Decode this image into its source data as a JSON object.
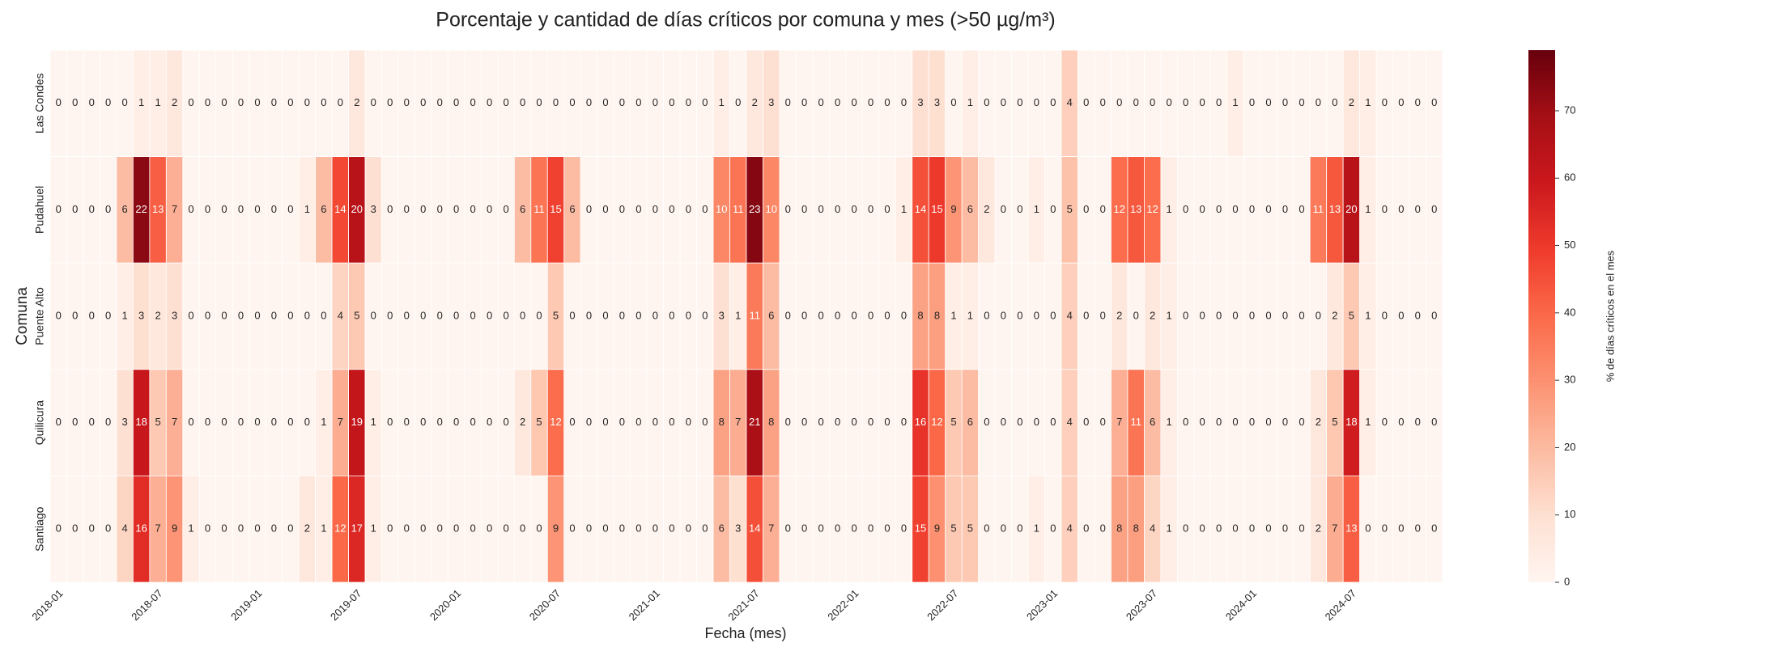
{
  "chart_data": {
    "type": "heatmap",
    "title": "Porcentaje y cantidad de días críticos por comuna y mes (>50 µg/m³)",
    "xlabel": "Fecha (mes)",
    "ylabel": "Comuna",
    "categories": [
      "2018-01",
      null,
      null,
      null,
      null,
      null,
      "2018-07",
      null,
      null,
      null,
      null,
      null,
      "2019-01",
      null,
      null,
      null,
      null,
      null,
      "2019-07",
      null,
      null,
      null,
      null,
      null,
      "2020-01",
      null,
      null,
      null,
      null,
      null,
      "2020-07",
      null,
      null,
      null,
      null,
      null,
      "2021-01",
      null,
      null,
      null,
      null,
      null,
      "2021-07",
      null,
      null,
      null,
      null,
      null,
      "2022-01",
      null,
      null,
      null,
      null,
      null,
      "2022-07",
      null,
      null,
      null,
      null,
      null,
      "2023-01",
      null,
      null,
      null,
      null,
      null,
      "2023-07",
      null,
      null,
      null,
      null,
      null,
      "2024-01",
      null,
      null,
      null,
      null,
      null,
      "2024-07",
      null,
      null,
      null,
      null,
      null
    ],
    "rows": [
      "Las Condes",
      "Pudahuel",
      "Puente Alto",
      "Quilicura",
      "Santiago"
    ],
    "values": [
      [
        0,
        0,
        0,
        0,
        0,
        1,
        1,
        2,
        0,
        0,
        0,
        0,
        0,
        0,
        0,
        0,
        0,
        0,
        2,
        0,
        0,
        0,
        0,
        0,
        0,
        0,
        0,
        0,
        0,
        0,
        0,
        0,
        0,
        0,
        0,
        0,
        0,
        0,
        0,
        0,
        1,
        0,
        2,
        3,
        0,
        0,
        0,
        0,
        0,
        0,
        0,
        0,
        3,
        3,
        0,
        1,
        0,
        0,
        0,
        0,
        0,
        4,
        0,
        0,
        0,
        0,
        0,
        0,
        0,
        0,
        0,
        1,
        0,
        0,
        0,
        0,
        0,
        0,
        2,
        1,
        0,
        0,
        0,
        0
      ],
      [
        0,
        0,
        0,
        0,
        6,
        22,
        13,
        7,
        0,
        0,
        0,
        0,
        0,
        0,
        0,
        1,
        6,
        14,
        20,
        3,
        0,
        0,
        0,
        0,
        0,
        0,
        0,
        0,
        6,
        11,
        15,
        6,
        0,
        0,
        0,
        0,
        0,
        0,
        0,
        0,
        10,
        11,
        23,
        10,
        0,
        0,
        0,
        0,
        0,
        0,
        0,
        1,
        14,
        15,
        9,
        6,
        2,
        0,
        0,
        1,
        0,
        5,
        0,
        0,
        12,
        13,
        12,
        1,
        0,
        0,
        0,
        0,
        0,
        0,
        0,
        0,
        11,
        13,
        20,
        1,
        0,
        0,
        0,
        0
      ],
      [
        0,
        0,
        0,
        0,
        1,
        3,
        2,
        3,
        0,
        0,
        0,
        0,
        0,
        0,
        0,
        0,
        0,
        4,
        5,
        0,
        0,
        0,
        0,
        0,
        0,
        0,
        0,
        0,
        0,
        0,
        5,
        0,
        0,
        0,
        0,
        0,
        0,
        0,
        0,
        0,
        3,
        1,
        11,
        6,
        0,
        0,
        0,
        0,
        0,
        0,
        0,
        0,
        8,
        8,
        1,
        1,
        0,
        0,
        0,
        0,
        0,
        4,
        0,
        0,
        2,
        0,
        2,
        1,
        0,
        0,
        0,
        0,
        0,
        0,
        0,
        0,
        0,
        2,
        5,
        1,
        0,
        0,
        0,
        0
      ],
      [
        0,
        0,
        0,
        0,
        3,
        18,
        5,
        7,
        0,
        0,
        0,
        0,
        0,
        0,
        0,
        0,
        1,
        7,
        19,
        1,
        0,
        0,
        0,
        0,
        0,
        0,
        0,
        0,
        2,
        5,
        12,
        0,
        0,
        0,
        0,
        0,
        0,
        0,
        0,
        0,
        8,
        7,
        21,
        8,
        0,
        0,
        0,
        0,
        0,
        0,
        0,
        0,
        16,
        12,
        5,
        6,
        0,
        0,
        0,
        0,
        0,
        4,
        0,
        0,
        7,
        11,
        6,
        1,
        0,
        0,
        0,
        0,
        0,
        0,
        0,
        0,
        2,
        5,
        18,
        1,
        0,
        0,
        0,
        0
      ],
      [
        0,
        0,
        0,
        0,
        4,
        16,
        7,
        9,
        1,
        0,
        0,
        0,
        0,
        0,
        0,
        2,
        1,
        12,
        17,
        1,
        0,
        0,
        0,
        0,
        0,
        0,
        0,
        0,
        0,
        0,
        9,
        0,
        0,
        0,
        0,
        0,
        0,
        0,
        0,
        0,
        6,
        3,
        14,
        7,
        0,
        0,
        0,
        0,
        0,
        0,
        0,
        0,
        15,
        9,
        5,
        5,
        0,
        0,
        0,
        1,
        0,
        4,
        0,
        0,
        8,
        8,
        4,
        1,
        0,
        0,
        0,
        0,
        0,
        0,
        0,
        0,
        2,
        7,
        13,
        0,
        0,
        0,
        0,
        0
      ]
    ],
    "colormap": "Reds",
    "colorbar_label": "% de días críticos en el mes",
    "clim": [
      0,
      79
    ],
    "cticks": [
      0,
      10,
      20,
      30,
      40,
      50,
      60,
      70
    ]
  }
}
